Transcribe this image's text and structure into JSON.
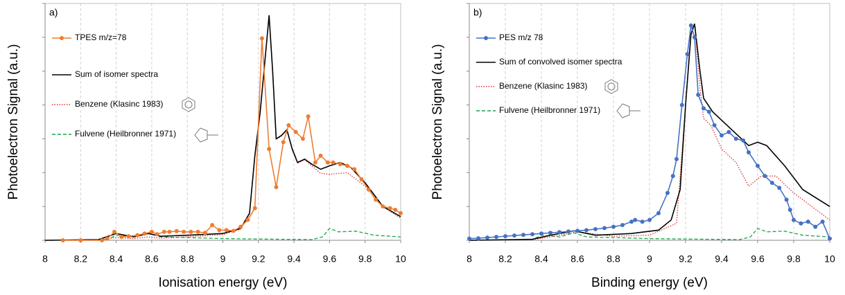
{
  "chart_data": [
    {
      "type": "line",
      "panel_label": "a)",
      "x_label": "Ionisation energy (eV)",
      "y_label": "Photoelectron Signal (a.u.)",
      "xlim": [
        8,
        10
      ],
      "xticks": [
        8,
        8.2,
        8.4,
        8.6,
        8.8,
        9,
        9.2,
        9.4,
        9.6,
        9.8,
        10
      ],
      "ylim": [
        0,
        7
      ],
      "yticks": [
        0,
        1,
        2,
        3,
        4,
        5,
        6,
        7
      ],
      "grid": true,
      "legend": "upper left",
      "series": [
        {
          "name": "TPES m/z=78",
          "color": "#ed7d31",
          "style": "solid",
          "marker": true,
          "x": [
            8.1,
            8.2,
            8.32,
            8.35,
            8.39,
            8.43,
            8.47,
            8.52,
            8.56,
            8.6,
            8.63,
            8.67,
            8.7,
            8.74,
            8.78,
            8.82,
            8.86,
            8.9,
            8.94,
            8.98,
            9.02,
            9.06,
            9.1,
            9.14,
            9.18,
            9.22,
            9.26,
            9.3,
            9.34,
            9.37,
            9.41,
            9.45,
            9.48,
            9.52,
            9.55,
            9.59,
            9.62,
            9.66,
            9.7,
            9.74,
            9.78,
            9.82,
            9.86,
            9.9,
            9.94,
            9.97,
            10
          ],
          "values": [
            0,
            0,
            0,
            0.05,
            0.25,
            0.1,
            0.12,
            0.15,
            0.2,
            0.25,
            0.18,
            0.25,
            0.25,
            0.27,
            0.25,
            0.25,
            0.25,
            0.22,
            0.45,
            0.3,
            0.3,
            0.28,
            0.4,
            0.6,
            0.95,
            5.97,
            2.7,
            1.57,
            2.9,
            3.4,
            3.2,
            3.0,
            3.66,
            2.3,
            2.5,
            2.3,
            2.3,
            2.25,
            2.2,
            2.1,
            1.8,
            1.5,
            1.2,
            1.0,
            0.95,
            0.9,
            0.8
          ]
        },
        {
          "name": "Sum of isomer spectra",
          "color": "#000000",
          "style": "solid",
          "marker": false,
          "x": [
            8,
            8.3,
            8.4,
            8.5,
            8.58,
            8.65,
            8.8,
            9.0,
            9.1,
            9.15,
            9.18,
            9.21,
            9.24,
            9.26,
            9.28,
            9.3,
            9.33,
            9.36,
            9.39,
            9.42,
            9.46,
            9.5,
            9.55,
            9.6,
            9.66,
            9.72,
            9.8,
            9.9,
            10
          ],
          "values": [
            0,
            0.02,
            0.2,
            0.1,
            0.2,
            0.12,
            0.15,
            0.2,
            0.35,
            0.8,
            2.5,
            3.8,
            5.5,
            6.65,
            5.0,
            3.0,
            3.1,
            3.27,
            2.7,
            2.3,
            2.4,
            2.25,
            2.1,
            2.2,
            2.3,
            2.15,
            1.7,
            1.0,
            0.7
          ]
        },
        {
          "name": "Benzene (Klasinc 1983)",
          "color": "#e03030",
          "style": "dotted",
          "marker": false,
          "x": [
            8,
            8.3,
            8.4,
            8.5,
            8.58,
            8.65,
            8.8,
            9.0,
            9.1,
            9.15,
            9.18,
            9.21,
            9.24,
            9.26,
            9.28,
            9.3,
            9.33,
            9.36,
            9.39,
            9.42,
            9.46,
            9.5,
            9.55,
            9.6,
            9.7,
            9.8,
            9.9,
            10
          ],
          "values": [
            0,
            0.01,
            0.08,
            0.05,
            0.1,
            0.06,
            0.1,
            0.17,
            0.33,
            0.78,
            2.48,
            3.78,
            5.48,
            6.6,
            4.98,
            2.98,
            3.08,
            3.25,
            2.68,
            2.28,
            2.38,
            2.2,
            1.98,
            1.95,
            2.0,
            1.6,
            1.0,
            0.65
          ]
        },
        {
          "name": "Fulvene (Heilbronner 1971)",
          "color": "#1aa34a",
          "style": "dashed",
          "marker": false,
          "x": [
            8,
            8.35,
            8.4,
            8.5,
            8.58,
            8.65,
            8.8,
            9.0,
            9.5,
            9.56,
            9.6,
            9.65,
            9.75,
            9.85,
            10
          ],
          "values": [
            0,
            0.02,
            0.15,
            0.1,
            0.22,
            0.1,
            0.08,
            0.05,
            0.02,
            0.1,
            0.35,
            0.25,
            0.27,
            0.15,
            0.1
          ]
        }
      ]
    },
    {
      "type": "line",
      "panel_label": "b)",
      "x_label": "Binding energy (eV)",
      "y_label": "Photoelectron Signal (a.u.)",
      "xlim": [
        8,
        10
      ],
      "xticks": [
        8,
        8.2,
        8.4,
        8.6,
        8.8,
        9,
        9.2,
        9.4,
        9.6,
        9.8,
        10
      ],
      "ylim": [
        0,
        7
      ],
      "yticks": [
        0,
        1,
        2,
        3,
        4,
        5,
        6,
        7
      ],
      "grid": true,
      "legend": "upper left",
      "series": [
        {
          "name": "PES m/z 78",
          "color": "#4472c4",
          "style": "solid",
          "marker": true,
          "x": [
            8,
            8.05,
            8.1,
            8.15,
            8.2,
            8.25,
            8.3,
            8.35,
            8.4,
            8.45,
            8.5,
            8.55,
            8.6,
            8.65,
            8.7,
            8.75,
            8.8,
            8.85,
            8.9,
            8.92,
            8.96,
            9.0,
            9.05,
            9.1,
            9.13,
            9.15,
            9.18,
            9.21,
            9.23,
            9.25,
            9.27,
            9.3,
            9.33,
            9.36,
            9.4,
            9.44,
            9.48,
            9.52,
            9.55,
            9.6,
            9.64,
            9.68,
            9.72,
            9.76,
            9.78,
            9.8,
            9.84,
            9.88,
            9.92,
            9.96,
            10
          ],
          "values": [
            0.05,
            0.06,
            0.08,
            0.1,
            0.12,
            0.14,
            0.16,
            0.18,
            0.2,
            0.22,
            0.24,
            0.26,
            0.28,
            0.3,
            0.33,
            0.36,
            0.4,
            0.45,
            0.55,
            0.6,
            0.55,
            0.6,
            0.8,
            1.4,
            1.9,
            2.4,
            4.0,
            5.5,
            6.35,
            6.0,
            4.3,
            3.9,
            3.8,
            3.4,
            3.1,
            3.2,
            3.0,
            2.95,
            2.6,
            2.2,
            1.9,
            1.7,
            1.55,
            1.2,
            0.9,
            0.6,
            0.5,
            0.55,
            0.4,
            0.55,
            0.05
          ]
        },
        {
          "name": "Sum of convolved isomer spectra",
          "color": "#000000",
          "style": "solid",
          "marker": false,
          "x": [
            8,
            8.35,
            8.45,
            8.58,
            8.7,
            8.9,
            9.05,
            9.12,
            9.17,
            9.2,
            9.23,
            9.25,
            9.28,
            9.3,
            9.35,
            9.45,
            9.55,
            9.6,
            9.65,
            9.75,
            9.85,
            10
          ],
          "values": [
            0,
            0.03,
            0.15,
            0.28,
            0.15,
            0.2,
            0.3,
            0.6,
            1.5,
            4.0,
            6.1,
            6.4,
            5.0,
            4.2,
            3.8,
            3.3,
            2.8,
            2.9,
            2.8,
            2.2,
            1.5,
            1.0
          ]
        },
        {
          "name": "Benzene (Klasinc 1983)",
          "color": "#e03030",
          "style": "dotted",
          "marker": false,
          "x": [
            8,
            8.35,
            8.45,
            8.6,
            8.8,
            9.0,
            9.15,
            9.2,
            9.23,
            9.25,
            9.28,
            9.3,
            9.34,
            9.4,
            9.48,
            9.55,
            9.62,
            9.7,
            9.8,
            9.9,
            10
          ],
          "values": [
            0,
            0.02,
            0.1,
            0.25,
            0.12,
            0.15,
            0.5,
            4.0,
            6.0,
            6.4,
            4.5,
            3.6,
            3.4,
            2.7,
            2.3,
            1.6,
            1.9,
            1.9,
            1.4,
            1.0,
            0.6
          ]
        },
        {
          "name": "Fulvene (Heilbronner 1971)",
          "color": "#1aa34a",
          "style": "dashed",
          "marker": false,
          "x": [
            8,
            8.35,
            8.4,
            8.5,
            8.58,
            8.65,
            8.8,
            9.0,
            9.5,
            9.56,
            9.6,
            9.65,
            9.75,
            9.85,
            10
          ],
          "values": [
            0,
            0.02,
            0.15,
            0.1,
            0.22,
            0.1,
            0.08,
            0.05,
            0.02,
            0.1,
            0.35,
            0.25,
            0.27,
            0.15,
            0.1
          ]
        }
      ]
    }
  ]
}
